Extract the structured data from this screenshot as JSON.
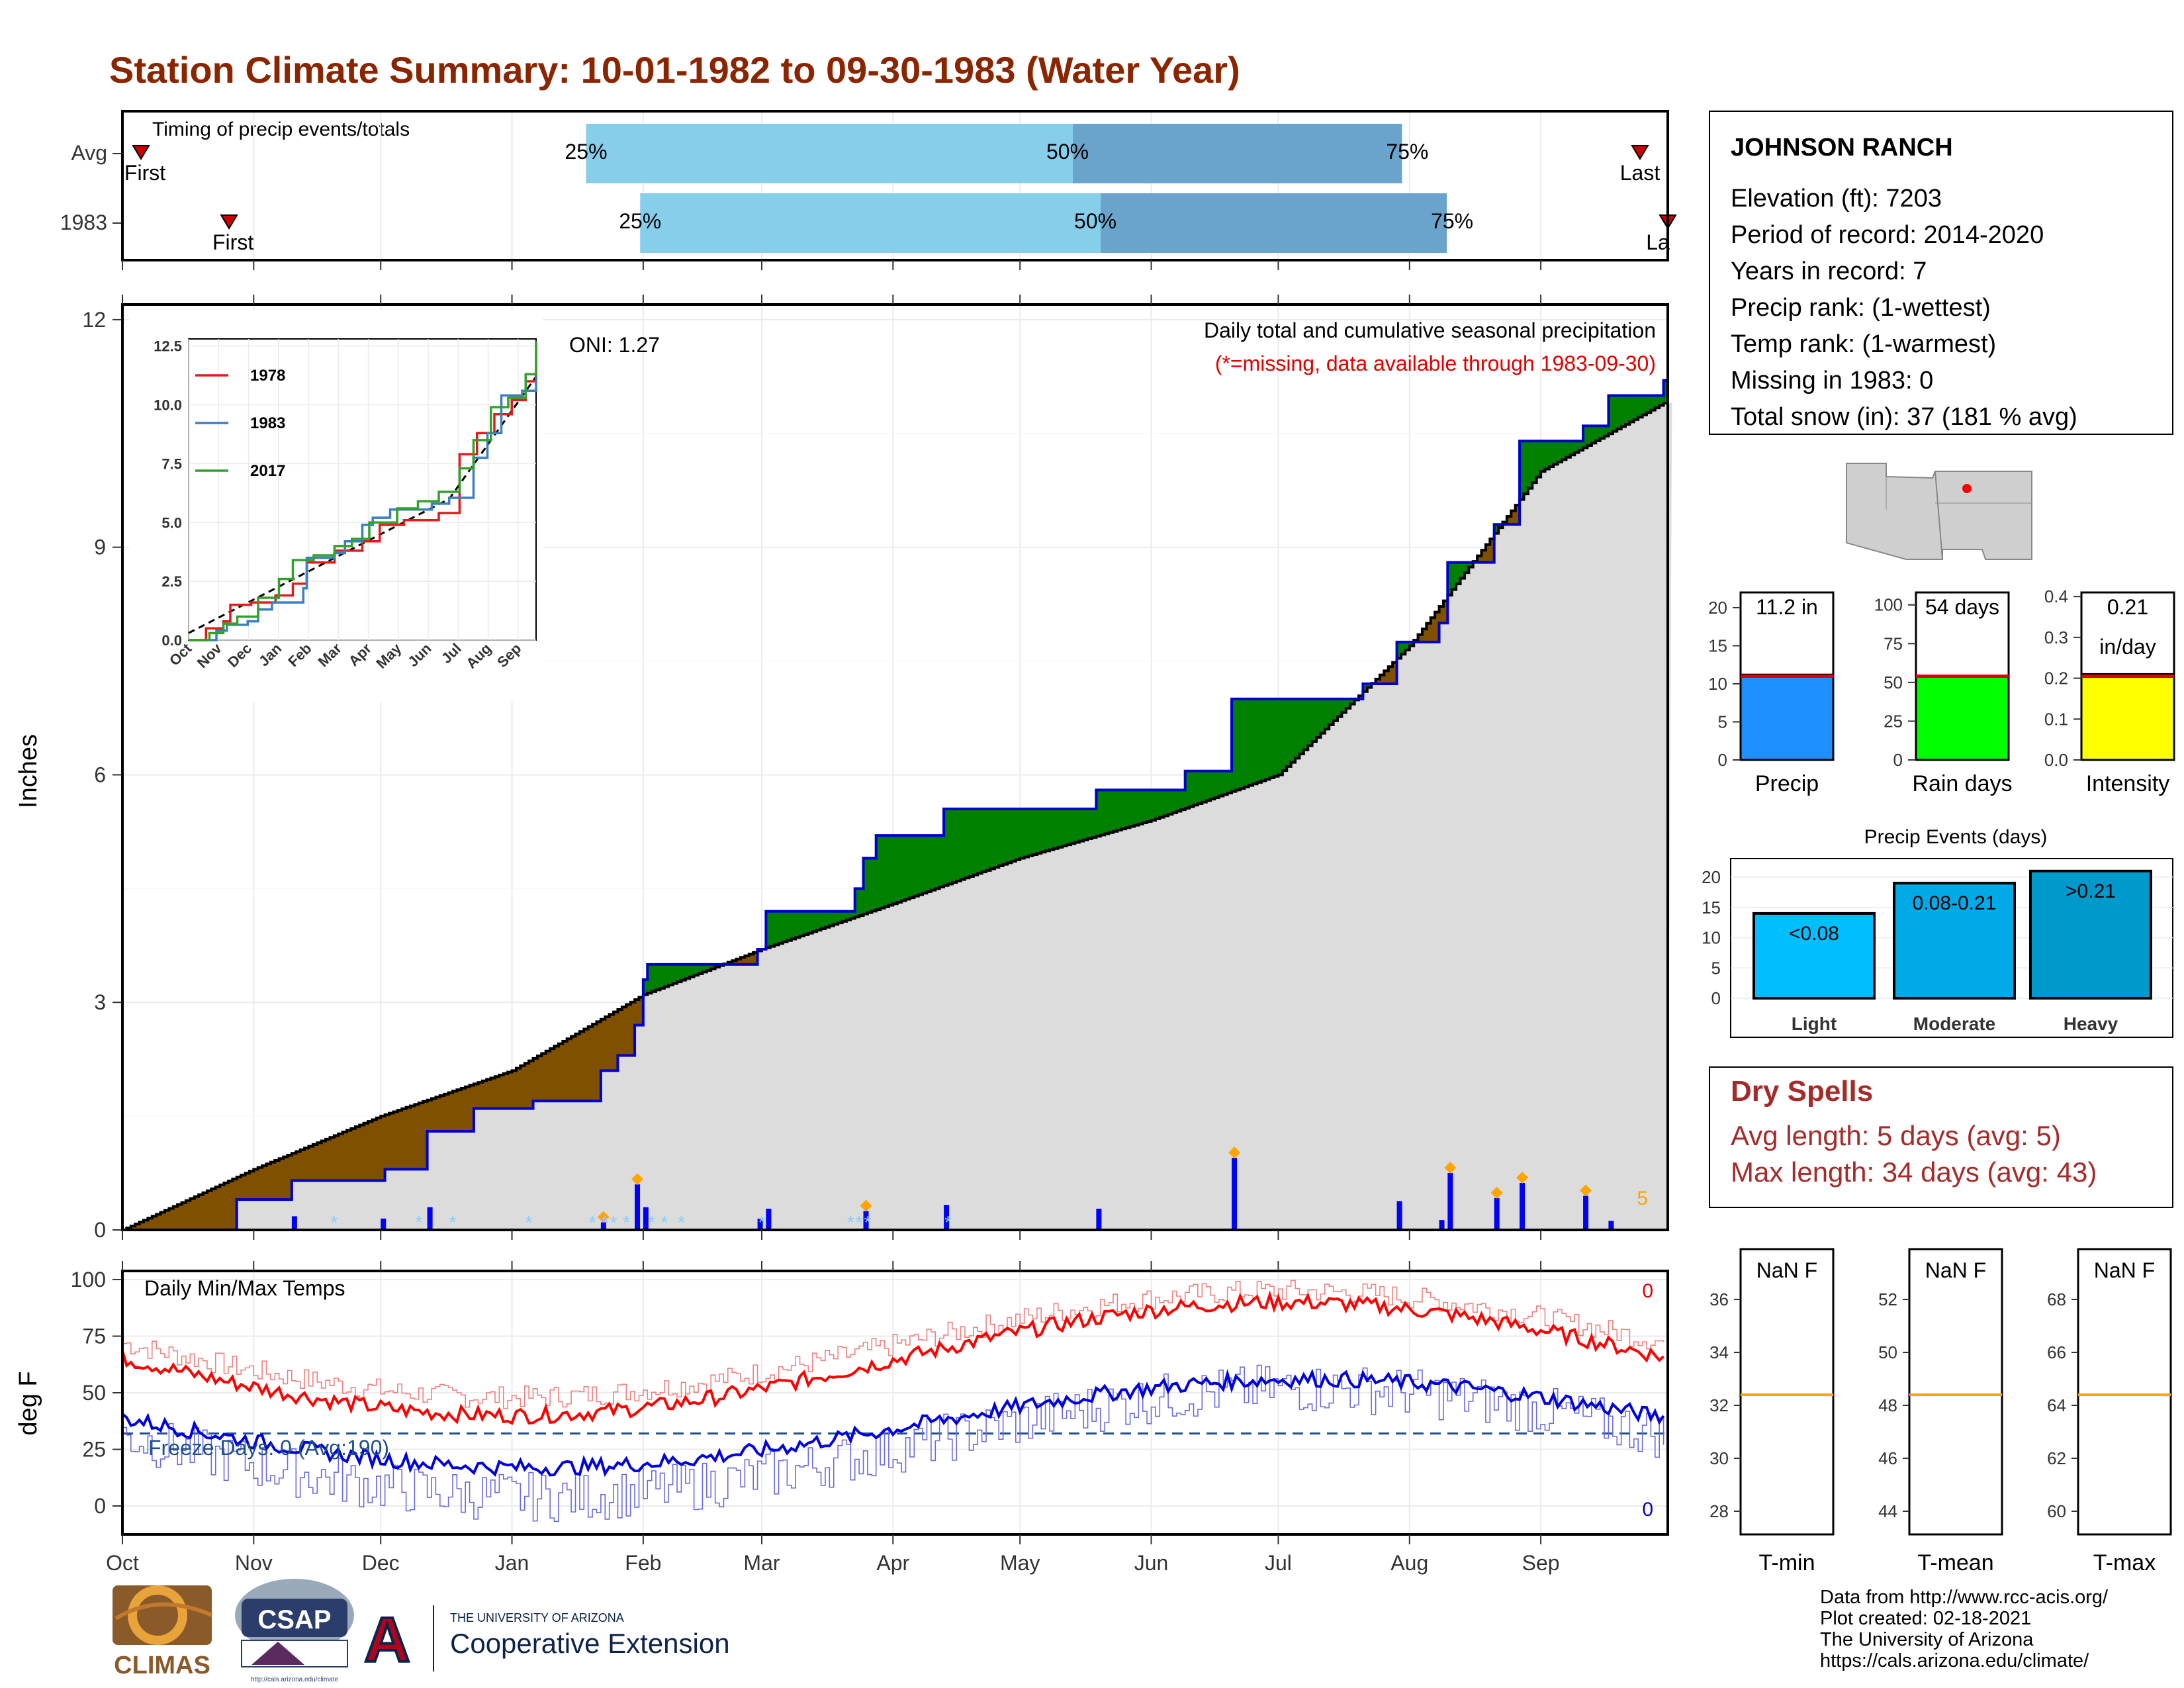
{
  "page": {
    "title": "Station Climate Summary: 10-01-1982 to 09-30-1983 (Water Year)",
    "title_color": "#8b2500"
  },
  "timing_panel": {
    "label": "Timing of precip events/totals",
    "rows": [
      {
        "name": "Avg",
        "first_label": "First",
        "last_label": "Last",
        "p25": 0.3,
        "p50": 0.615,
        "p75": 0.828,
        "first": 0.012,
        "last": 0.982,
        "p25_label": "25%",
        "p50_label": "50%",
        "p75_label": "75%"
      },
      {
        "name": "1983",
        "first_label": "First",
        "last_label": "La",
        "p25": 0.335,
        "p50": 0.633,
        "p75": 0.857,
        "first": 0.069,
        "last": 1.0,
        "p25_label": "25%",
        "p50_label": "50%",
        "p75_label": "75%"
      }
    ],
    "colors": {
      "light": "#87ceeb",
      "dark": "#6aa3cc",
      "marker": "#cc0000"
    }
  },
  "precip_panel": {
    "ylabel": "Inches",
    "oni_label": "ONI: 1.27",
    "desc_line1": "Daily total and cumulative seasonal precipitation",
    "desc_line2": "(*=missing, data available through 1983-09-30)",
    "snow_marker": "5",
    "yticks": [
      0,
      3,
      6,
      9,
      12
    ],
    "ylim": [
      0,
      12.2
    ],
    "colors": {
      "above": "#008000",
      "below": "#7f5000",
      "normal": "#dcdcdc",
      "obs_line": "#0000cd",
      "bar": "#0000ff",
      "snow": "#87cefa",
      "extreme": "#ffa500"
    }
  },
  "inset": {
    "yticks": [
      "0.0",
      "2.5",
      "5.0",
      "7.5",
      "10.0",
      "12.5"
    ],
    "months": [
      "Oct",
      "Nov",
      "Dec",
      "Jan",
      "Feb",
      "Mar",
      "Apr",
      "May",
      "Jun",
      "Jul",
      "Aug",
      "Sep"
    ],
    "legend": [
      {
        "name": "1978",
        "color": "#e31a1c"
      },
      {
        "name": "1983",
        "color": "#3a7fc1"
      },
      {
        "name": "2017",
        "color": "#33a02c"
      }
    ]
  },
  "temp_panel": {
    "ylabel": "deg F",
    "label": "Daily Min/Max Temps",
    "freeze_label": "Freeze Days: 0 (Avg:190)",
    "max_count": "0",
    "min_count": "0",
    "yticks": [
      0,
      25,
      50,
      75,
      100
    ],
    "freeze_line": 32,
    "months": [
      "Oct",
      "Nov",
      "Dec",
      "Jan",
      "Feb",
      "Mar",
      "Apr",
      "May",
      "Jun",
      "Jul",
      "Aug",
      "Sep"
    ]
  },
  "station_box": {
    "name": "JOHNSON RANCH",
    "lines": [
      "Elevation (ft): 7203",
      "Period of record: 2014-2020",
      "Years in record: 7",
      "Precip rank:  (1-wettest)",
      "Temp rank:  (1-warmest)",
      "Missing in 1983: 0",
      "Total snow (in): 37 (181 % avg)"
    ]
  },
  "gauges": [
    {
      "name": "Precip",
      "label": "11.2 in",
      "label2": "",
      "value": 11.2,
      "avg": 11.0,
      "max": 22,
      "ticks": [
        "0",
        "5",
        "10",
        "15",
        "20"
      ],
      "color": "#1e90ff"
    },
    {
      "name": "Rain days",
      "label": "54 days",
      "label2": "",
      "value": 54,
      "avg": 54,
      "max": 108,
      "ticks": [
        "0",
        "25",
        "50",
        "75",
        "100"
      ],
      "color": "#00ff00"
    },
    {
      "name": "Intensity",
      "label": "0.21",
      "label2": "in/day",
      "value": 0.21,
      "avg": 0.205,
      "max": 0.41,
      "ticks": [
        "0.0",
        "0.1",
        "0.2",
        "0.3",
        "0.4"
      ],
      "color": "#ffff00"
    }
  ],
  "events": {
    "title": "Precip Events (days)",
    "yticks": [
      "0",
      "5",
      "10",
      "15",
      "20"
    ],
    "bars": [
      {
        "category": "Light",
        "label": "<0.08",
        "value": 14,
        "color": "#00bfff"
      },
      {
        "category": "Moderate",
        "label": "0.08-0.21",
        "value": 19,
        "color": "#00aae6"
      },
      {
        "category": "Heavy",
        "label": ">0.21",
        "value": 21,
        "color": "#0099cc"
      }
    ]
  },
  "dry_spells": {
    "title": "Dry Spells",
    "line1": "Avg length: 5 days (avg: 5)",
    "line2": "Max length: 34 days (avg: 43)",
    "color": "#a52a2a"
  },
  "temp_gauges": [
    {
      "name": "T-min",
      "label": "NaN F",
      "ticks": [
        "28",
        "30",
        "32",
        "34",
        "36"
      ],
      "avg_frac": 0.58
    },
    {
      "name": "T-mean",
      "label": "NaN F",
      "ticks": [
        "44",
        "46",
        "48",
        "50",
        "52"
      ],
      "avg_frac": 0.58
    },
    {
      "name": "T-max",
      "label": "NaN F",
      "ticks": [
        "60",
        "62",
        "64",
        "66",
        "68"
      ],
      "avg_frac": 0.58
    }
  ],
  "footer": {
    "credit": [
      "Data from http://www.rcc-acis.org/",
      "Plot created: 02-18-2021",
      "The University of Arizona",
      "https://cals.arizona.edu/climate/"
    ],
    "climas": "CLIMAS",
    "csap": "CSAP",
    "csap_url": "http://cals.arizona.edu/climate",
    "ua_small": "THE UNIVERSITY OF ARIZONA",
    "ua_big": "Cooperative Extension",
    "ua_letter": "A"
  },
  "chart_data": {
    "type": "area",
    "title": "Station Climate Summary: 10-01-1982 to 09-30-1983 (Water Year)",
    "ylabel": "Inches",
    "ylim": [
      0,
      12.2
    ],
    "x_unit": "water-year month",
    "months": [
      "Oct",
      "Nov",
      "Dec",
      "Jan",
      "Feb",
      "Mar",
      "Apr",
      "May",
      "Jun",
      "Jul",
      "Aug",
      "Sep"
    ],
    "cumulative_observed": [
      {
        "date": "1982-10-01",
        "value": 0.0
      },
      {
        "date": "1982-10-27",
        "value": 0.0
      },
      {
        "date": "1982-10-28",
        "value": 0.4
      },
      {
        "date": "1982-11-09",
        "value": 0.4
      },
      {
        "date": "1982-11-10",
        "value": 0.65
      },
      {
        "date": "1982-12-01",
        "value": 0.65
      },
      {
        "date": "1982-12-02",
        "value": 0.8
      },
      {
        "date": "1982-12-11",
        "value": 0.8
      },
      {
        "date": "1982-12-12",
        "value": 1.3
      },
      {
        "date": "1982-12-23",
        "value": 1.6
      },
      {
        "date": "1983-01-06",
        "value": 1.7
      },
      {
        "date": "1983-01-22",
        "value": 2.1
      },
      {
        "date": "1983-01-26",
        "value": 2.3
      },
      {
        "date": "1983-01-30",
        "value": 2.7
      },
      {
        "date": "1983-02-01",
        "value": 3.3
      },
      {
        "date": "1983-02-02",
        "value": 3.5
      },
      {
        "date": "1983-02-28",
        "value": 3.7
      },
      {
        "date": "1983-03-02",
        "value": 4.2
      },
      {
        "date": "1983-03-23",
        "value": 4.5
      },
      {
        "date": "1983-03-25",
        "value": 4.9
      },
      {
        "date": "1983-03-28",
        "value": 5.2
      },
      {
        "date": "1983-04-13",
        "value": 5.55
      },
      {
        "date": "1983-05-19",
        "value": 5.8
      },
      {
        "date": "1983-06-09",
        "value": 6.05
      },
      {
        "date": "1983-06-20",
        "value": 7.0
      },
      {
        "date": "1983-07-21",
        "value": 7.2
      },
      {
        "date": "1983-07-29",
        "value": 7.75
      },
      {
        "date": "1983-08-08",
        "value": 8.0
      },
      {
        "date": "1983-08-10",
        "value": 8.8
      },
      {
        "date": "1983-08-21",
        "value": 9.3
      },
      {
        "date": "1983-08-27",
        "value": 10.4
      },
      {
        "date": "1983-09-11",
        "value": 10.6
      },
      {
        "date": "1983-09-17",
        "value": 11.0
      },
      {
        "date": "1983-09-30",
        "value": 11.2
      }
    ],
    "cumulative_normal": [
      {
        "date": "1982-10-01",
        "value": 0.0
      },
      {
        "date": "1982-11-01",
        "value": 0.8
      },
      {
        "date": "1982-12-01",
        "value": 1.5
      },
      {
        "date": "1983-01-01",
        "value": 2.1
      },
      {
        "date": "1983-02-01",
        "value": 3.1
      },
      {
        "date": "1983-03-01",
        "value": 3.7
      },
      {
        "date": "1983-04-01",
        "value": 4.3
      },
      {
        "date": "1983-05-01",
        "value": 4.9
      },
      {
        "date": "1983-06-01",
        "value": 5.4
      },
      {
        "date": "1983-07-01",
        "value": 6.0
      },
      {
        "date": "1983-08-01",
        "value": 7.7
      },
      {
        "date": "1983-09-01",
        "value": 10.0
      },
      {
        "date": "1983-09-30",
        "value": 10.9
      }
    ],
    "daily_bars": [
      {
        "date": "1982-11-10",
        "value": 0.18
      },
      {
        "date": "1982-12-01",
        "value": 0.15
      },
      {
        "date": "1982-12-12",
        "value": 0.3
      },
      {
        "date": "1983-01-22",
        "value": 0.1
      },
      {
        "date": "1983-01-30",
        "value": 0.6
      },
      {
        "date": "1983-02-01",
        "value": 0.3
      },
      {
        "date": "1983-02-28",
        "value": 0.15
      },
      {
        "date": "1983-03-02",
        "value": 0.28
      },
      {
        "date": "1983-03-25",
        "value": 0.25
      },
      {
        "date": "1983-04-13",
        "value": 0.33
      },
      {
        "date": "1983-05-19",
        "value": 0.28
      },
      {
        "date": "1983-06-20",
        "value": 0.95
      },
      {
        "date": "1983-07-29",
        "value": 0.38
      },
      {
        "date": "1983-08-08",
        "value": 0.13
      },
      {
        "date": "1983-08-10",
        "value": 0.75
      },
      {
        "date": "1983-08-21",
        "value": 0.42
      },
      {
        "date": "1983-08-27",
        "value": 0.62
      },
      {
        "date": "1983-09-11",
        "value": 0.45
      },
      {
        "date": "1983-09-17",
        "value": 0.12
      }
    ]
  }
}
